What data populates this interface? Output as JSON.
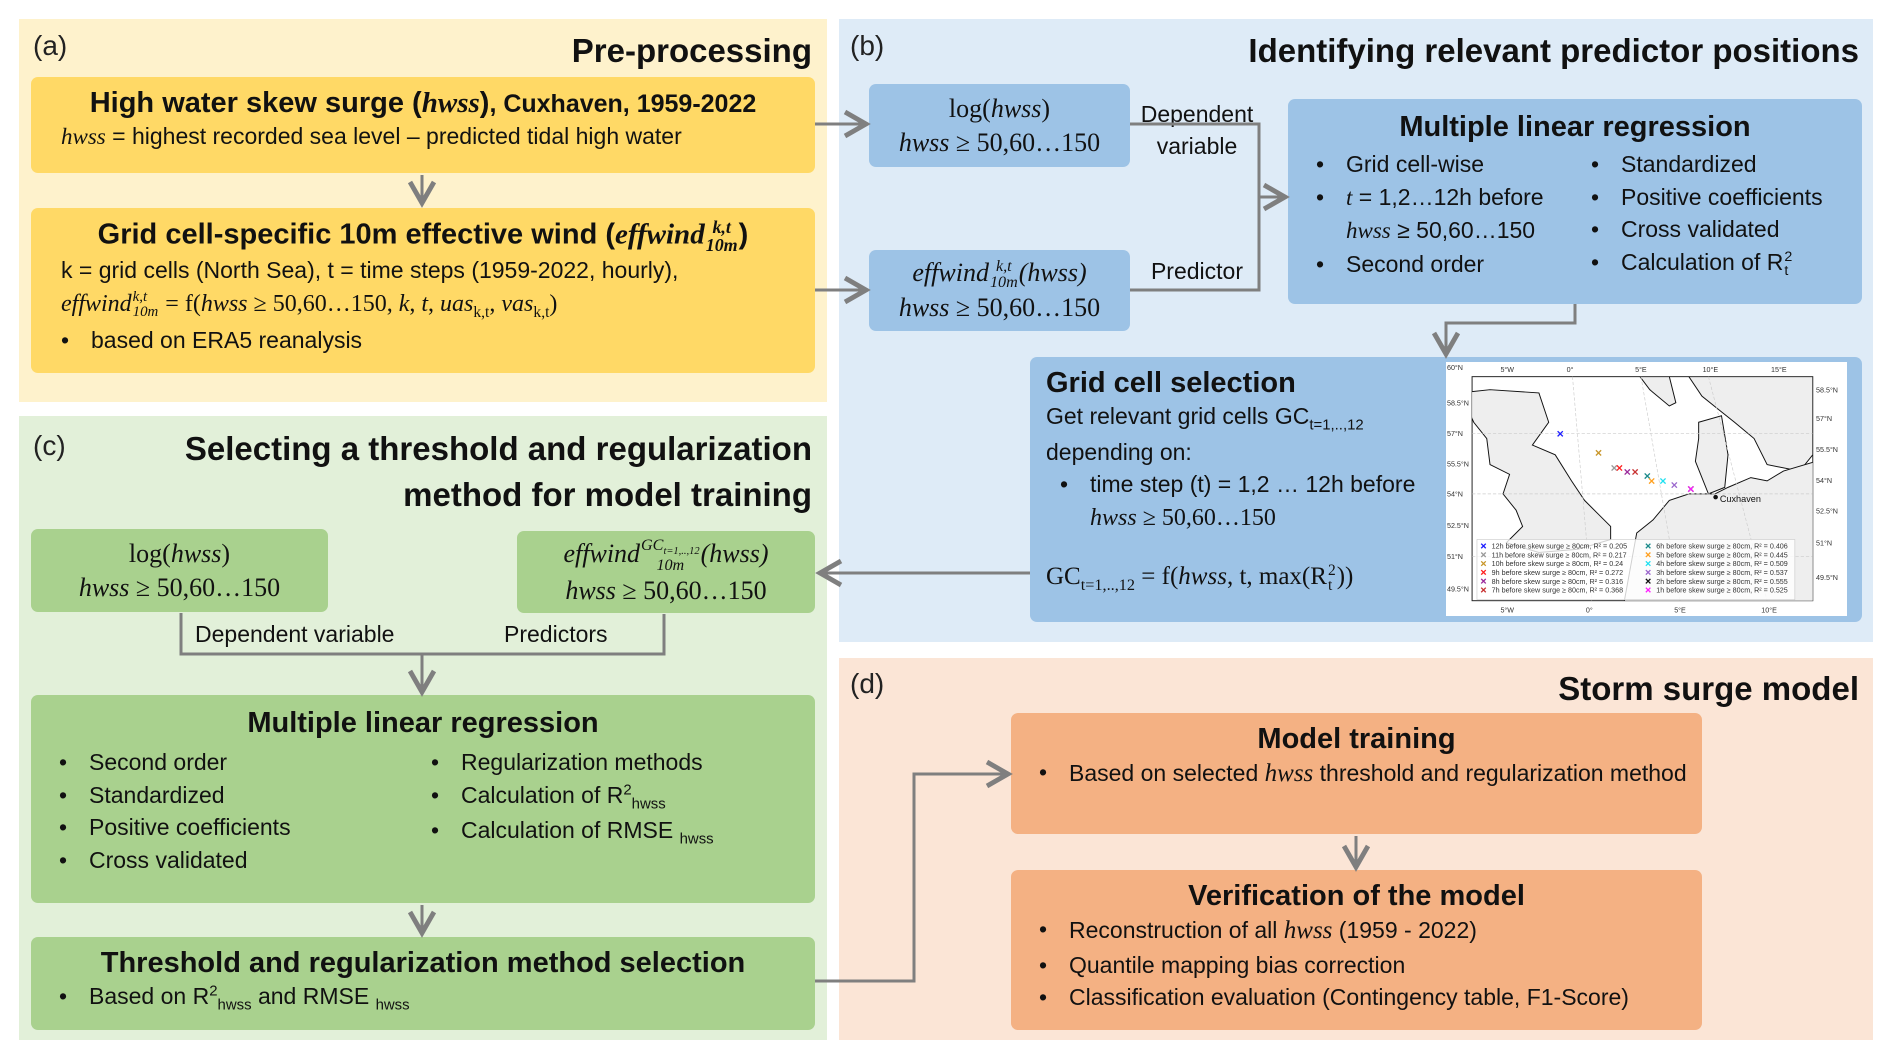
{
  "colors": {
    "panel_a": "#fef2cc",
    "box_a": "#ffd966",
    "panel_b": "#deebf7",
    "box_b": "#9dc3e6",
    "panel_c": "#e2f0d9",
    "box_c": "#a9d18e",
    "panel_d": "#fbe5d6",
    "box_d": "#f4b183",
    "arrow": "#7f7f7f"
  },
  "panel_a": {
    "label": "(a)",
    "title": "Pre-processing",
    "box1": {
      "title_pre": "High water skew surge (",
      "title_var": "hwss",
      "title_post": ")",
      "title_suffix": ", Cuxhaven, 1959-2022",
      "line_var": "hwss",
      "line_text": " = highest recorded sea level – predicted tidal high water"
    },
    "box2": {
      "title_pre": "Grid cell-specific 10m effective wind (",
      "var": "effwind",
      "sup": "k,t",
      "sub": "10m",
      "post": ")",
      "line1": "k = grid cells (North Sea),  t = time steps (1959-2022, hourly),",
      "eq_lhs": "effwind",
      "eq_sup": "k,t",
      "eq_sub": "10m",
      "eq_mid": " = f(",
      "eq_var": "hwss",
      "eq_cond": " ≥ 50,60…150, ",
      "eq_k": "k",
      "eq_t": "t",
      "eq_uas": "uas",
      "eq_vas": "vas",
      "eq_idx": "k,t",
      "eq_end": ")",
      "bullet": "based on ERA5 reanalysis"
    }
  },
  "panel_b": {
    "label": "(b)",
    "title": "Identifying relevant predictor positions",
    "log_box": {
      "line1_fn": "log(",
      "line1_var": "hwss",
      "line1_end": ")",
      "line2_var": "hwss",
      "line2_cond": " ≥ 50,60…150"
    },
    "eff_box": {
      "var": "effwind",
      "sup": "k,t",
      "sub": "10m",
      "arg": "(hwss)",
      "line2_var": "hwss",
      "line2_cond": " ≥ 50,60…150"
    },
    "dep_label": "Dependent variable",
    "pred_label": "Predictor",
    "mlr": {
      "title": "Multiple linear regression",
      "left": [
        {
          "text": "Grid cell-wise"
        },
        {
          "var": "t",
          "text": " = 1,2…12h before"
        },
        {
          "var": "hwss",
          "text": " ≥ 50,60…150",
          "cont": true
        },
        {
          "text": "Second order"
        }
      ],
      "right": [
        "Standardized",
        "Positive coefficients",
        "Cross validated",
        "Calculation of R"
      ],
      "r_sup": "2",
      "r_sub": "t"
    },
    "grid": {
      "title": "Grid cell selection",
      "line1": "Get relevant grid cells GC",
      "line1_sub": "t=1,..,12",
      "line2": "depending on:",
      "bullet1": "time step (t) = 1,2 … 12h before",
      "bullet1_var": "hwss",
      "bullet1_cond": " ≥ 50,60…150",
      "eq_gc": "GC",
      "eq_sub": "t=1,..,12",
      "eq_mid": " = f(",
      "eq_var": "hwss",
      "eq_rest": ", t, max(R",
      "eq_sup": "2",
      "eq_sub2": "t",
      "eq_end": "))"
    },
    "map": {
      "place": "Cuxhaven",
      "lon_labels_top": [
        "5°W",
        "0°",
        "5°E",
        "10°E",
        "15°E"
      ],
      "lon_labels_bottom": [
        "5°W",
        "0°",
        "5°E",
        "10°E"
      ],
      "lat_labels_left": [
        "60°N",
        "58.5°N",
        "57°N",
        "55.5°N",
        "54°N",
        "52.5°N",
        "51°N",
        "49.5°N"
      ],
      "lat_labels_right": [
        "58.5°N",
        "57°N",
        "55.5°N",
        "54°N",
        "52.5°N",
        "51°N",
        "49.5°N"
      ],
      "markers": [
        {
          "label": "12h before skew surge ≥ 80cm, R² = 0.205",
          "color": "#1f1fff",
          "lon": -1.9,
          "lat": 57.0
        },
        {
          "label": "11h before skew surge ≥ 80cm, R² = 0.217",
          "color": "#999999",
          "lon": 1.2,
          "lat": 55.3
        },
        {
          "label": "10h before skew surge ≥ 80cm, R² = 0.24",
          "color": "#c8962a",
          "lon": 0.3,
          "lat": 56.05
        },
        {
          "label": "9h before skew surge ≥ 80cm, R² = 0.272",
          "color": "#ff2020",
          "lon": 1.5,
          "lat": 55.3
        },
        {
          "label": "8h before skew surge ≥ 80cm, R² = 0.316",
          "color": "#9b2a9b",
          "lon": 1.95,
          "lat": 55.1
        },
        {
          "label": "7h before skew surge ≥ 80cm, R² = 0.368",
          "color": "#c83232",
          "lon": 2.4,
          "lat": 55.1
        },
        {
          "label": "6h before skew surge ≥ 80cm, R² = 0.406",
          "color": "#1a8a8a",
          "lon": 3.1,
          "lat": 54.9
        },
        {
          "label": "5h before skew surge ≥ 80cm, R² = 0.445",
          "color": "#ffa020",
          "lon": 3.35,
          "lat": 54.65
        },
        {
          "label": "4h before skew surge ≥ 80cm, R² = 0.509",
          "color": "#20e0f0",
          "lon": 4.0,
          "lat": 54.65
        },
        {
          "label": "3h before skew surge ≥ 80cm, R² = 0.537",
          "color": "#9a66cc",
          "lon": 4.65,
          "lat": 54.45
        },
        {
          "label": "2h before skew surge ≥ 80cm, R² = 0.555",
          "color": "#111111",
          "lon": 5.6,
          "lat": 54.25
        },
        {
          "label": "1h before skew surge ≥ 80cm, R² = 0.525",
          "color": "#ff20ff",
          "lon": 5.6,
          "lat": 54.25
        }
      ]
    }
  },
  "panel_c": {
    "label": "(c)",
    "title_line1": "Selecting a threshold and regularization",
    "title_line2": "method for model training",
    "log_box": {
      "line1_fn": "log(",
      "line1_var": "hwss",
      "line1_end": ")",
      "line2_var": "hwss",
      "line2_cond": " ≥ 50,60…150"
    },
    "eff_box": {
      "var": "effwind",
      "sup": "GC",
      "sup_sub": "t=1,..,12",
      "sub": "10m",
      "arg": "(hwss)",
      "line2_var": "hwss",
      "line2_cond": " ≥ 50,60…150"
    },
    "dep_label": "Dependent variable",
    "pred_label": "Predictors",
    "mlr": {
      "title": "Multiple linear regression",
      "left": [
        "Second order",
        "Standardized",
        "Positive coefficients",
        "Cross validated"
      ],
      "right": [
        {
          "text": "Regularization methods"
        },
        {
          "text": "Calculation of R",
          "sup": "2",
          "sub": "hwss"
        },
        {
          "text": "Calculation of RMSE ",
          "sub": "hwss"
        }
      ]
    },
    "threshold": {
      "title": "Threshold and regularization method selection",
      "b_pre": "Based on R",
      "b_sup": "2",
      "b_sub": "hwss",
      "b_mid": " and RMSE ",
      "b_sub2": "hwss"
    }
  },
  "panel_d": {
    "label": "(d)",
    "title": "Storm surge model",
    "training": {
      "title": "Model training",
      "b_pre": "Based on selected ",
      "b_var": "hwss",
      "b_post": " threshold and regularization method"
    },
    "verification": {
      "title": "Verification of the model",
      "items": [
        {
          "pre": "Reconstruction of all ",
          "var": "hwss",
          "post": " (1959 - 2022)"
        },
        {
          "pre": "Quantile mapping bias correction"
        },
        {
          "pre": "Classification evaluation (Contingency table, F1-Score)"
        }
      ]
    }
  }
}
